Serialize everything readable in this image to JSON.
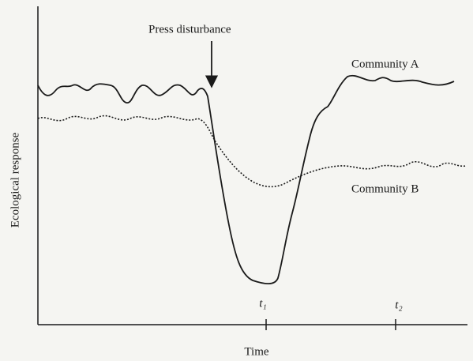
{
  "annotation": "Press disturbance",
  "curves": [
    {
      "label": "Community A"
    },
    {
      "label": "Community B"
    }
  ],
  "axes": {
    "y_label": "Ecological response",
    "x_label": "Time"
  },
  "ticks": [
    "t₁",
    "t₂"
  ]
}
